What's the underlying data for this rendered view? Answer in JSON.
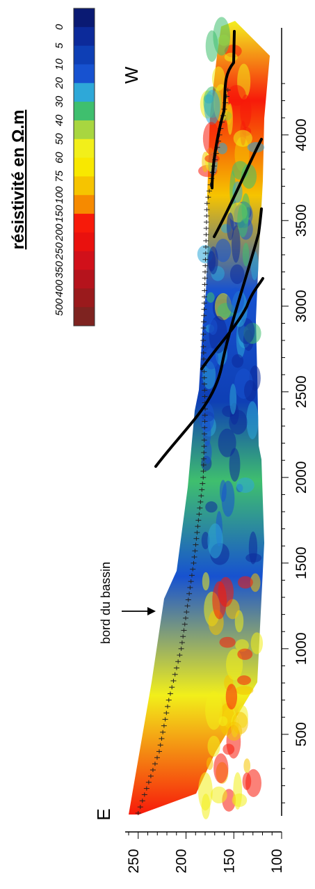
{
  "chart_data": {
    "type": "heatmap",
    "title": "résistivité en Ω.m",
    "xlabel": "",
    "ylabel": "",
    "x_ticks": [
      "500",
      "1000",
      "1500",
      "2000",
      "2500",
      "3000",
      "3500",
      "4000"
    ],
    "y_ticks": [
      "100",
      "150",
      "200",
      "250"
    ],
    "xlim": [
      0,
      4400
    ],
    "ylim": [
      100,
      260
    ],
    "legend": {
      "placement": "top-right",
      "levels": [
        "0",
        "5",
        "10",
        "20",
        "30",
        "40",
        "50",
        "60",
        "75",
        "100",
        "150",
        "200",
        "250",
        "350",
        "400",
        "500"
      ],
      "colors": [
        "#0a1a73",
        "#0c2a9a",
        "#0e3fb5",
        "#1752d0",
        "#2ea8d8",
        "#3fbf6e",
        "#a8d640",
        "#f2ef1a",
        "#f8e800",
        "#f6c400",
        "#f68a00",
        "#f71a0a",
        "#e9110e",
        "#d1101a",
        "#b5131c",
        "#9a1a1c",
        "#7e2320"
      ]
    },
    "series": [
      {
        "name": "",
        "x": [
          40,
          400,
          700,
          1000,
          1500,
          2000,
          2400,
          2800,
          3200,
          3600,
          4000,
          4300
        ],
        "y": [
          250,
          228,
          218,
          205,
          192,
          182,
          180,
          182,
          180,
          178,
          165,
          155
        ]
      }
    ]
  },
  "annotations": {
    "east": "E",
    "west": "W",
    "arrow_label": "bord du bassin"
  }
}
